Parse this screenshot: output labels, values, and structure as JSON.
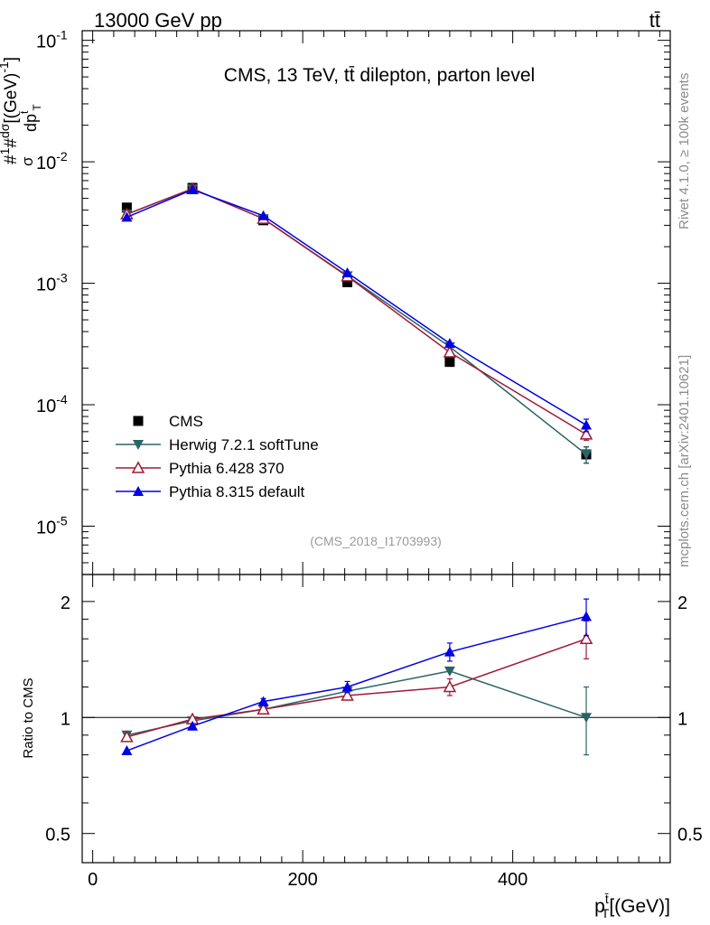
{
  "header": {
    "left": "13000 GeV pp",
    "right": "tt̄"
  },
  "side_labels": {
    "rivet": "Rivet 4.1.0, ≥ 100k events",
    "mcplots": "mcplots.cern.ch [arXiv:2401.10621]"
  },
  "colors": {
    "cms": "#000000",
    "herwig": "#2a6367",
    "pythia6": "#a01b36",
    "pythia8": "#0000e6",
    "side_text": "#8c8c8c"
  },
  "chart_data": [
    {
      "type": "line",
      "title": "CMS, 13 TeV, tt̄ dilepton, parton level",
      "ylabel": "1/σ dσ/dp_T^t̄ [(GeV)^-1]",
      "ylabel_pieces": {
        "top": "#",
        "top_frac": "1",
        "top_sigma": "σ",
        "hash2": "#",
        "dsigma": "dσ",
        "dpt": "dp",
        "pt_sup": "t̄",
        "pt_sub": "T",
        "unit": "[(GeV)",
        "unit_exp": "-1",
        "unit_close": "]"
      },
      "yscale": "log",
      "ylim": [
        4e-06,
        0.12
      ],
      "xlim": [
        -10,
        550
      ],
      "yticks": [
        {
          "value": 1e-05,
          "base": "10",
          "exp": "-5"
        },
        {
          "value": 0.0001,
          "base": "10",
          "exp": "-4"
        },
        {
          "value": 0.001,
          "base": "10",
          "exp": "-3"
        },
        {
          "value": 0.01,
          "base": "10",
          "exp": "-2"
        },
        {
          "value": 0.1,
          "base": "10",
          "exp": "-1"
        }
      ],
      "watermark": "(CMS_2018_I1703993)",
      "legend_position": "bottom-left",
      "series": [
        {
          "name": "CMS",
          "key": "cms",
          "marker": "square",
          "x": [
            32.5,
            95,
            162.5,
            242.5,
            340,
            470
          ],
          "y": [
            0.0042,
            0.0061,
            0.0033,
            0.00102,
            0.000225,
            3.9e-05
          ],
          "yerr": [
            0.0002,
            0.0002,
            0.0001,
            4e-05,
            1e-05,
            6e-06
          ]
        },
        {
          "name": "Herwig 7.2.1 softTune",
          "key": "herwig",
          "marker": "triangle-down",
          "x": [
            32.5,
            95,
            162.5,
            242.5,
            340,
            470
          ],
          "y": [
            0.0037,
            0.006,
            0.0034,
            0.00115,
            0.0003,
            3.9e-05
          ],
          "yerr": [
            0,
            0,
            0,
            0,
            0,
            6e-06
          ]
        },
        {
          "name": "Pythia 6.428 370",
          "key": "pythia6",
          "marker": "triangle-up-open",
          "x": [
            32.5,
            95,
            162.5,
            242.5,
            340,
            470
          ],
          "y": [
            0.0037,
            0.006,
            0.0034,
            0.00114,
            0.00027,
            5.7e-05
          ],
          "yerr": [
            0,
            0,
            0,
            0,
            0,
            6e-06
          ]
        },
        {
          "name": "Pythia 8.315 default",
          "key": "pythia8",
          "marker": "triangle-up",
          "x": [
            32.5,
            95,
            162.5,
            242.5,
            340,
            470
          ],
          "y": [
            0.0035,
            0.0059,
            0.0036,
            0.00122,
            0.00032,
            6.8e-05
          ],
          "yerr": [
            0,
            0,
            0,
            0,
            0,
            8e-06
          ]
        }
      ]
    },
    {
      "type": "line",
      "ylabel": "Ratio to CMS",
      "xlabel": "p_T^t̄ [(GeV)]",
      "xlabel_pieces": {
        "p": "p",
        "sup": "t̄",
        "sub": "T",
        "unit": "[(GeV)]"
      },
      "yscale": "log",
      "ylim": [
        0.42,
        2.35
      ],
      "xlim": [
        -10,
        550
      ],
      "xticks": [
        {
          "value": 0,
          "label": "0"
        },
        {
          "value": 200,
          "label": "200"
        },
        {
          "value": 400,
          "label": "400"
        }
      ],
      "yticks": [
        {
          "value": 0.5,
          "label": "0.5"
        },
        {
          "value": 1,
          "label": "1"
        },
        {
          "value": 2,
          "label": "2"
        }
      ],
      "reference_line": 1,
      "series": [
        {
          "name": "Herwig 7.2.1 softTune",
          "key": "herwig",
          "marker": "triangle-down",
          "x": [
            32.5,
            95,
            162.5,
            242.5,
            340,
            470
          ],
          "y": [
            0.9,
            0.98,
            1.05,
            1.17,
            1.32,
            1.0
          ],
          "yerr": [
            0,
            0,
            0,
            0,
            0,
            0.2
          ]
        },
        {
          "name": "Pythia 6.428 370",
          "key": "pythia6",
          "marker": "triangle-up-open",
          "x": [
            32.5,
            95,
            162.5,
            242.5,
            340,
            470
          ],
          "y": [
            0.89,
            0.99,
            1.05,
            1.14,
            1.2,
            1.6
          ],
          "yerr": [
            0,
            0,
            0.02,
            0.03,
            0.06,
            0.18
          ]
        },
        {
          "name": "Pythia 8.315 default",
          "key": "pythia8",
          "marker": "triangle-up",
          "x": [
            32.5,
            95,
            162.5,
            242.5,
            340,
            470
          ],
          "y": [
            0.82,
            0.95,
            1.1,
            1.2,
            1.48,
            1.83
          ],
          "yerr": [
            0,
            0,
            0.02,
            0.04,
            0.08,
            0.2
          ]
        }
      ]
    }
  ]
}
